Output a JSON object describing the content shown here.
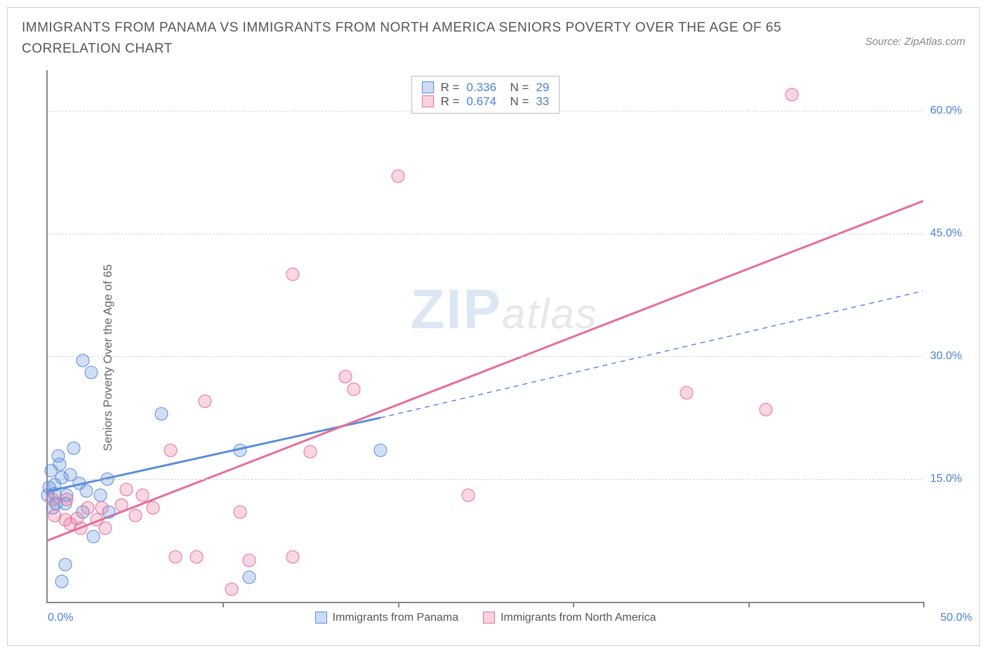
{
  "title": "IMMIGRANTS FROM PANAMA VS IMMIGRANTS FROM NORTH AMERICA SENIORS POVERTY OVER THE AGE OF 65 CORRELATION CHART",
  "source": "Source: ZipAtlas.com",
  "ylabel": "Seniors Poverty Over the Age of 65",
  "watermark": {
    "zip": "ZIP",
    "atlas": "atlas"
  },
  "chart": {
    "type": "scatter",
    "xlim": [
      0,
      50
    ],
    "ylim": [
      0,
      65
    ],
    "xticks": [
      0,
      10,
      20,
      30,
      40,
      50
    ],
    "yticks": [
      15,
      30,
      45,
      60
    ],
    "ytick_labels": [
      "15.0%",
      "30.0%",
      "45.0%",
      "60.0%"
    ],
    "x_left_label": "0.0%",
    "x_right_label": "50.0%",
    "background_color": "#ffffff",
    "grid_color": "#d8d8d8",
    "grid_dash": true,
    "axis_color": "#888888",
    "marker_radius": 9.5,
    "marker_opacity": 0.28,
    "label_color": "#4a7fd6",
    "series": [
      {
        "name": "Immigrants from Panama",
        "key": "blue",
        "color": "#5a8cdc",
        "fill": "rgba(90,140,220,0.3)",
        "R": "0.336",
        "N": "29",
        "trend": {
          "x1": 0,
          "y1": 13.5,
          "x2": 19,
          "y2": 22.5,
          "dash_x1": 19,
          "dash_y1": 22.5,
          "dash_x2": 50,
          "dash_y2": 38,
          "solid_width": 3,
          "dashed": true
        },
        "points": [
          {
            "x": 0.0,
            "y": 13.0
          },
          {
            "x": 0.3,
            "y": 11.5
          },
          {
            "x": 0.5,
            "y": 12.0
          },
          {
            "x": 0.1,
            "y": 14.0
          },
          {
            "x": 0.4,
            "y": 13.2
          },
          {
            "x": 0.6,
            "y": 17.8
          },
          {
            "x": 0.2,
            "y": 16.0
          },
          {
            "x": 0.8,
            "y": 15.2
          },
          {
            "x": 0.4,
            "y": 14.3
          },
          {
            "x": 1.1,
            "y": 13.0
          },
          {
            "x": 0.7,
            "y": 16.8
          },
          {
            "x": 1.3,
            "y": 15.5
          },
          {
            "x": 1.5,
            "y": 18.8
          },
          {
            "x": 2.2,
            "y": 13.5
          },
          {
            "x": 2.0,
            "y": 11.0
          },
          {
            "x": 2.6,
            "y": 8.0
          },
          {
            "x": 1.0,
            "y": 4.5
          },
          {
            "x": 0.8,
            "y": 2.5
          },
          {
            "x": 2.0,
            "y": 29.5
          },
          {
            "x": 2.5,
            "y": 28.0
          },
          {
            "x": 3.4,
            "y": 15.0
          },
          {
            "x": 3.0,
            "y": 13.0
          },
          {
            "x": 3.5,
            "y": 11.0
          },
          {
            "x": 6.5,
            "y": 23.0
          },
          {
            "x": 11.0,
            "y": 18.5
          },
          {
            "x": 11.5,
            "y": 3.0
          },
          {
            "x": 19.0,
            "y": 18.5
          },
          {
            "x": 1.0,
            "y": 12.0
          },
          {
            "x": 1.8,
            "y": 14.5
          }
        ]
      },
      {
        "name": "Immigrants from North America",
        "key": "pink",
        "color": "#e66e96",
        "fill": "rgba(230,110,150,0.3)",
        "R": "0.674",
        "N": "33",
        "trend": {
          "x1": 0,
          "y1": 7.5,
          "x2": 50,
          "y2": 49,
          "solid_width": 3,
          "dashed": false
        },
        "points": [
          {
            "x": 0.3,
            "y": 12.5
          },
          {
            "x": 0.4,
            "y": 10.5
          },
          {
            "x": 1.0,
            "y": 10.0
          },
          {
            "x": 1.1,
            "y": 12.5
          },
          {
            "x": 1.3,
            "y": 9.5
          },
          {
            "x": 1.7,
            "y": 10.2
          },
          {
            "x": 1.9,
            "y": 9.0
          },
          {
            "x": 2.3,
            "y": 11.5
          },
          {
            "x": 2.8,
            "y": 10.0
          },
          {
            "x": 3.1,
            "y": 11.5
          },
          {
            "x": 3.3,
            "y": 9.0
          },
          {
            "x": 4.2,
            "y": 11.8
          },
          {
            "x": 4.5,
            "y": 13.7
          },
          {
            "x": 5.0,
            "y": 10.5
          },
          {
            "x": 5.4,
            "y": 13.0
          },
          {
            "x": 6.0,
            "y": 11.5
          },
          {
            "x": 7.0,
            "y": 18.5
          },
          {
            "x": 7.3,
            "y": 5.5
          },
          {
            "x": 8.5,
            "y": 5.5
          },
          {
            "x": 9.0,
            "y": 24.5
          },
          {
            "x": 10.5,
            "y": 1.5
          },
          {
            "x": 11.0,
            "y": 11.0
          },
          {
            "x": 11.5,
            "y": 5.0
          },
          {
            "x": 14.0,
            "y": 5.5
          },
          {
            "x": 15.0,
            "y": 18.3
          },
          {
            "x": 14.0,
            "y": 40.0
          },
          {
            "x": 17.0,
            "y": 27.5
          },
          {
            "x": 17.5,
            "y": 26.0
          },
          {
            "x": 20.0,
            "y": 52.0
          },
          {
            "x": 24.0,
            "y": 13.0
          },
          {
            "x": 36.5,
            "y": 25.5
          },
          {
            "x": 41.0,
            "y": 23.5
          },
          {
            "x": 42.5,
            "y": 62.0
          }
        ]
      }
    ]
  },
  "bottom_legend": {
    "blue": "Immigrants from Panama",
    "pink": "Immigrants from North America"
  }
}
